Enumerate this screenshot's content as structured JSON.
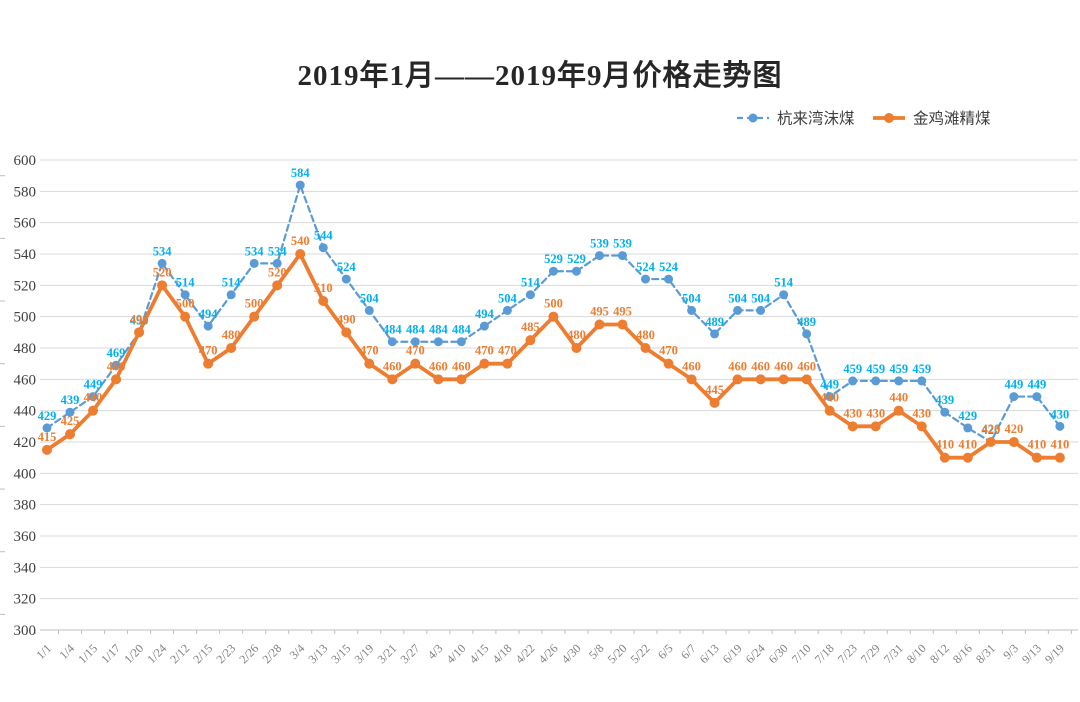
{
  "title": "2019年1月——2019年9月价格走势图",
  "chart_data": {
    "type": "line",
    "title": "2019年1月——2019年9月价格走势图",
    "categories": [
      "1/1",
      "1/4",
      "1/15",
      "1/17",
      "1/20",
      "1/24",
      "2/12",
      "2/15",
      "2/23",
      "2/26",
      "2/28",
      "3/4",
      "3/13",
      "3/15",
      "3/19",
      "3/21",
      "3/27",
      "4/3",
      "4/10",
      "4/15",
      "4/18",
      "4/22",
      "4/26",
      "4/30",
      "5/8",
      "5/20",
      "5/22",
      "6/5",
      "6/7",
      "6/13",
      "6/19",
      "6/24",
      "6/30",
      "7/10",
      "7/18",
      "7/23",
      "7/29",
      "7/31",
      "8/10",
      "8/12",
      "8/16",
      "8/31",
      "9/3",
      "9/13",
      "9/19"
    ],
    "series": [
      {
        "name": "杭来湾沫煤",
        "line_style": "dashed",
        "color": "#5B9BD5",
        "label_color": "#00B0F0",
        "values": [
          429,
          439,
          449,
          469,
          490,
          534,
          514,
          494,
          514,
          534,
          534,
          584,
          544,
          524,
          504,
          484,
          484,
          484,
          484,
          494,
          504,
          514,
          529,
          529,
          539,
          539,
          524,
          524,
          504,
          489,
          504,
          504,
          514,
          489,
          449,
          459,
          459,
          459,
          459,
          439,
          429,
          420,
          449,
          449,
          430
        ]
      },
      {
        "name": "金鸡滩精煤",
        "line_style": "solid",
        "color": "#ED7D31",
        "label_color": "#ED7D31",
        "values": [
          415,
          425,
          440,
          460,
          490,
          520,
          500,
          470,
          480,
          500,
          520,
          540,
          510,
          490,
          470,
          460,
          470,
          460,
          460,
          470,
          470,
          485,
          500,
          480,
          495,
          495,
          480,
          470,
          460,
          445,
          460,
          460,
          460,
          460,
          440,
          430,
          430,
          440,
          430,
          410,
          410,
          420,
          420,
          410,
          410
        ]
      }
    ],
    "ylim": [
      300,
      600
    ],
    "yticks": [
      300,
      320,
      340,
      360,
      380,
      400,
      420,
      440,
      460,
      480,
      500,
      520,
      540,
      560,
      580,
      600
    ],
    "grid": true,
    "data_labels": true,
    "legend_position": "top-right",
    "xlabel": "",
    "ylabel": ""
  },
  "colors": {
    "background": "#FFFFFF",
    "grid": "#D9D9D9",
    "axis": "#BFBFBF",
    "y_tick_text": "#404040",
    "x_tick_text": "#808080",
    "title_text": "#262626",
    "legend_text": "#404040"
  }
}
